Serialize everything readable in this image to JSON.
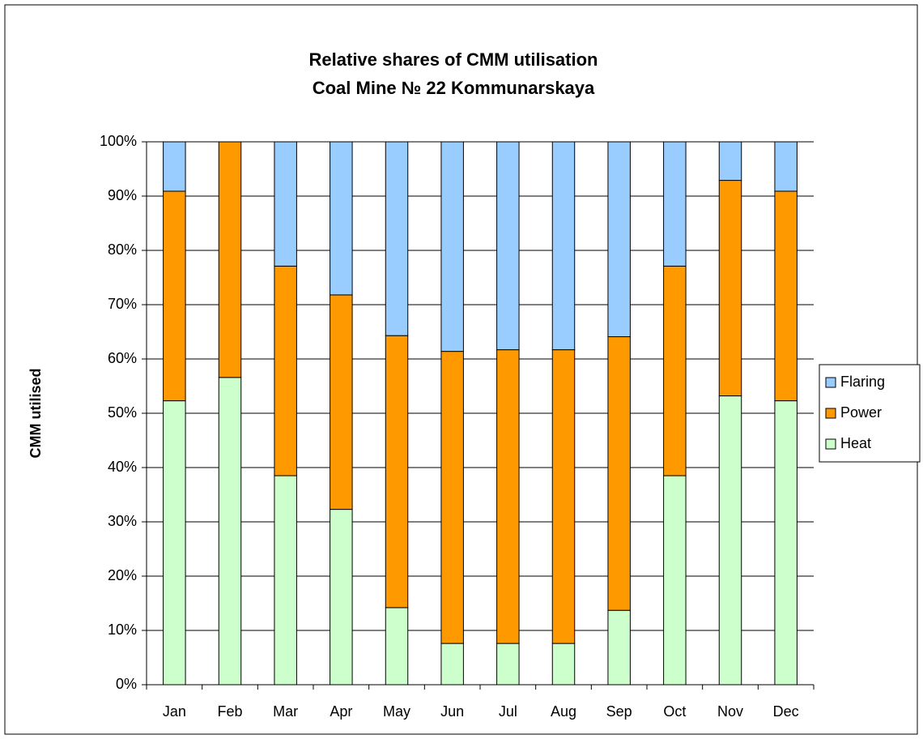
{
  "chart_data": {
    "type": "stacked_bar",
    "title": [
      "Relative shares of CMM utilisation",
      "Coal Mine № 22 Kommunarskaya"
    ],
    "y_label": "CMM utilised",
    "categories": [
      "Jan",
      "Feb",
      "Mar",
      "Apr",
      "May",
      "Jun",
      "Jul",
      "Aug",
      "Sep",
      "Oct",
      "Nov",
      "Dec"
    ],
    "series": [
      {
        "name": "Heat",
        "color": "#ccffcc",
        "values": [
          52.3,
          56.6,
          38.5,
          32.3,
          14.2,
          7.6,
          7.6,
          7.6,
          13.7,
          38.5,
          53.2,
          52.3
        ]
      },
      {
        "name": "Power",
        "color": "#ff9900",
        "values": [
          38.6,
          43.4,
          38.6,
          39.5,
          50.1,
          53.8,
          54.1,
          54.1,
          50.4,
          38.6,
          39.7,
          38.6
        ]
      },
      {
        "name": "Flaring",
        "color": "#99ccff",
        "values": [
          9.1,
          0,
          22.9,
          28.2,
          35.7,
          38.6,
          38.3,
          38.3,
          35.9,
          22.9,
          7.1,
          9.1
        ]
      }
    ],
    "ylim": [
      0,
      100
    ],
    "yticks": [
      {
        "value": 0,
        "label": "0%"
      },
      {
        "value": 10,
        "label": "10%"
      },
      {
        "value": 20,
        "label": "20%"
      },
      {
        "value": 30,
        "label": "30%"
      },
      {
        "value": 40,
        "label": "40%"
      },
      {
        "value": 50,
        "label": "50%"
      },
      {
        "value": 60,
        "label": "60%"
      },
      {
        "value": 70,
        "label": "70%"
      },
      {
        "value": 80,
        "label": "80%"
      },
      {
        "value": 90,
        "label": "90%"
      },
      {
        "value": 100,
        "label": "100%"
      }
    ],
    "grid": true,
    "legend": "right"
  }
}
